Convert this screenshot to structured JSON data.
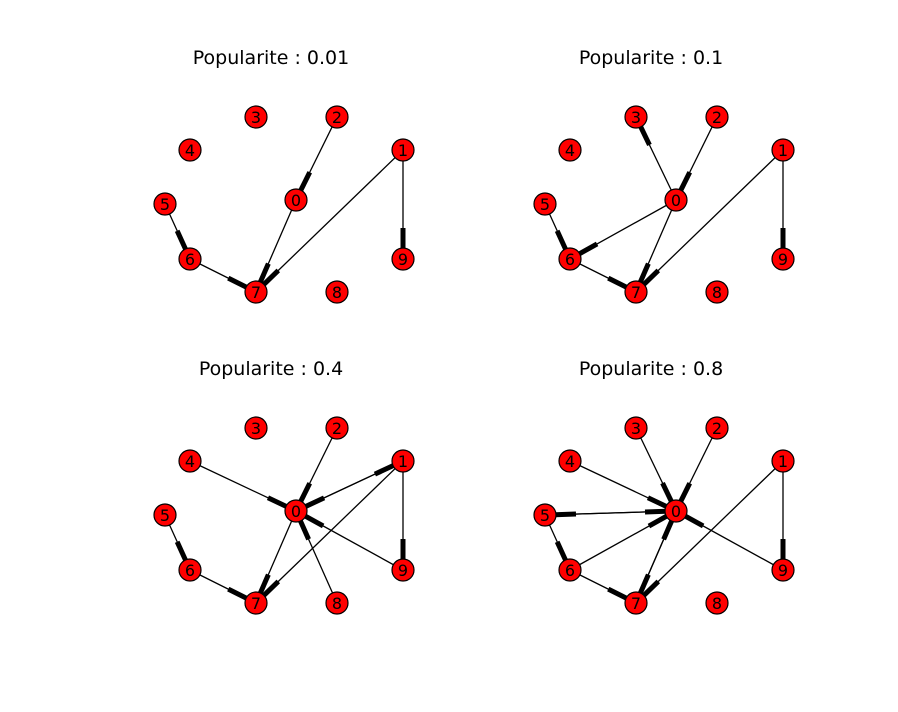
{
  "chart_data": {
    "type": "network-graph",
    "node_color": "#ff0000",
    "edge_color": "#000000",
    "node_labels": [
      "0",
      "1",
      "2",
      "3",
      "4",
      "5",
      "6",
      "7",
      "8",
      "9"
    ],
    "panels": [
      {
        "title": "Popularite : 0.01",
        "edges": [
          [
            2,
            0
          ],
          [
            0,
            7
          ],
          [
            1,
            7
          ],
          [
            1,
            9
          ],
          [
            5,
            6
          ],
          [
            6,
            7
          ]
        ]
      },
      {
        "title": "Popularite : 0.1",
        "edges": [
          [
            0,
            3
          ],
          [
            2,
            0
          ],
          [
            0,
            7
          ],
          [
            0,
            6
          ],
          [
            1,
            7
          ],
          [
            1,
            9
          ],
          [
            5,
            6
          ],
          [
            6,
            7
          ]
        ]
      },
      {
        "title": "Popularite : 0.4",
        "edges": [
          [
            2,
            0
          ],
          [
            4,
            0
          ],
          [
            1,
            0
          ],
          [
            0,
            1
          ],
          [
            9,
            0
          ],
          [
            8,
            0
          ],
          [
            0,
            7
          ],
          [
            1,
            7
          ],
          [
            1,
            9
          ],
          [
            5,
            6
          ],
          [
            6,
            7
          ]
        ]
      },
      {
        "title": "Popularite : 0.8",
        "edges": [
          [
            2,
            0
          ],
          [
            3,
            0
          ],
          [
            4,
            0
          ],
          [
            5,
            0
          ],
          [
            0,
            5
          ],
          [
            6,
            0
          ],
          [
            9,
            0
          ],
          [
            7,
            0
          ],
          [
            0,
            7
          ],
          [
            1,
            7
          ],
          [
            1,
            9
          ],
          [
            5,
            6
          ],
          [
            6,
            7
          ]
        ]
      }
    ]
  }
}
